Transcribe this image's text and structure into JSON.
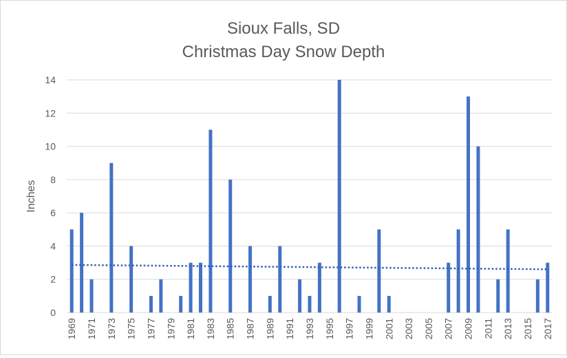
{
  "chart_data": {
    "type": "bar",
    "title_line1": "Sioux Falls, SD",
    "title_line2": "Christmas Day Snow Depth",
    "ylabel": "Inches",
    "ylim": [
      0,
      14
    ],
    "yticks": [
      0,
      2,
      4,
      6,
      8,
      10,
      12,
      14
    ],
    "grid": true,
    "x": [
      1969,
      1970,
      1971,
      1972,
      1973,
      1974,
      1975,
      1976,
      1977,
      1978,
      1979,
      1980,
      1981,
      1982,
      1983,
      1984,
      1985,
      1986,
      1987,
      1988,
      1989,
      1990,
      1991,
      1992,
      1993,
      1994,
      1995,
      1996,
      1997,
      1998,
      1999,
      2000,
      2001,
      2002,
      2003,
      2004,
      2005,
      2006,
      2007,
      2008,
      2009,
      2010,
      2011,
      2012,
      2013,
      2014,
      2015,
      2016,
      2017
    ],
    "xtick_labels": [
      "1969",
      "1971",
      "1973",
      "1975",
      "1977",
      "1979",
      "1981",
      "1983",
      "1985",
      "1987",
      "1989",
      "1991",
      "1993",
      "1995",
      "1997",
      "1999",
      "2001",
      "2003",
      "2005",
      "2007",
      "2009",
      "2011",
      "2013",
      "2015",
      "2017"
    ],
    "values": [
      5,
      6,
      2,
      0,
      9,
      0,
      4,
      0,
      1,
      2,
      0,
      1,
      3,
      3,
      11,
      0,
      8,
      0,
      4,
      0,
      1,
      4,
      0,
      2,
      1,
      3,
      0,
      14,
      0,
      1,
      0,
      5,
      1,
      0,
      0,
      0,
      0,
      0,
      3,
      5,
      13,
      10,
      0,
      2,
      5,
      0,
      0,
      2,
      3
    ],
    "trendline": {
      "type": "linear",
      "style": "dotted"
    },
    "colors": {
      "bar": "#4472c4",
      "trend": "#2e5fb5",
      "grid": "#d9d9d9",
      "axis_text": "#595959",
      "title": "#595959"
    }
  }
}
